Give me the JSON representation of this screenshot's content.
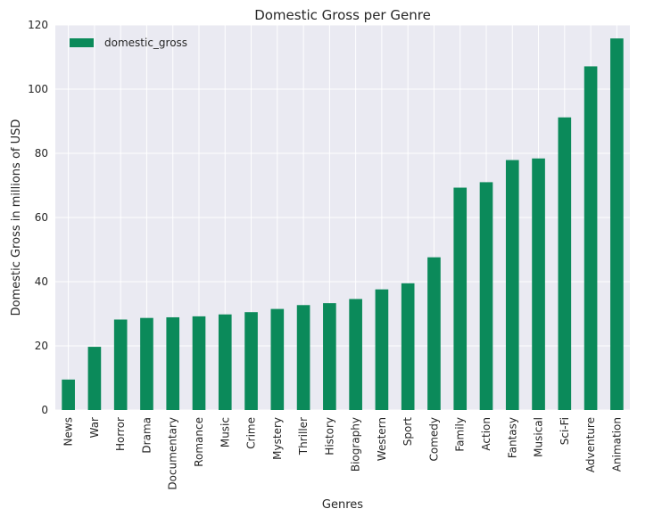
{
  "chart_data": {
    "type": "bar",
    "title": "Domestic Gross per Genre",
    "xlabel": "Genres",
    "ylabel": "Domestic Gross in millions of USD",
    "categories": [
      "News",
      "War",
      "Horror",
      "Drama",
      "Documentary",
      "Romance",
      "Music",
      "Crime",
      "Mystery",
      "Thriller",
      "History",
      "Biography",
      "Western",
      "Sport",
      "Comedy",
      "Family",
      "Action",
      "Fantasy",
      "Musical",
      "Sci-Fi",
      "Adventure",
      "Animation"
    ],
    "series": [
      {
        "name": "domestic_gross",
        "color": "#0b8a5a",
        "values": [
          9.5,
          19.7,
          28.2,
          28.7,
          28.9,
          29.2,
          29.8,
          30.5,
          31.5,
          32.7,
          33.3,
          34.6,
          37.6,
          39.5,
          47.6,
          69.3,
          71.0,
          77.9,
          78.4,
          91.2,
          107.1,
          115.8
        ]
      }
    ],
    "ylim": [
      0,
      120
    ],
    "yticks": [
      0,
      20,
      40,
      60,
      80,
      100,
      120
    ],
    "grid": true,
    "legend_position": "top-left",
    "background_color": "#eaeaf2"
  }
}
